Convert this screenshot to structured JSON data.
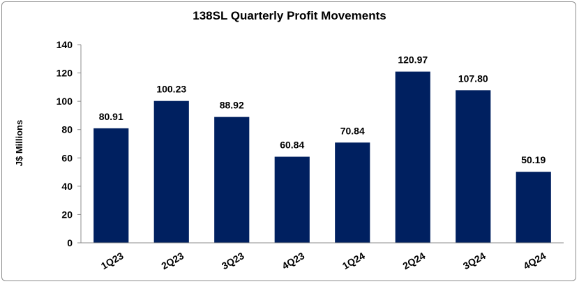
{
  "chart_data": {
    "type": "bar",
    "title": "138SL Quarterly Profit Movements",
    "ylabel": "J$ Millions",
    "xlabel": "",
    "categories": [
      "1Q23",
      "2Q23",
      "3Q23",
      "4Q23",
      "1Q24",
      "2Q24",
      "3Q24",
      "4Q24"
    ],
    "values": [
      80.91,
      100.23,
      88.92,
      60.84,
      70.84,
      120.97,
      107.8,
      50.19
    ],
    "data_labels": [
      "80.91",
      "100.23",
      "88.92",
      "60.84",
      "70.84",
      "120.97",
      "107.80",
      "50.19"
    ],
    "ylim": [
      0,
      140
    ],
    "yticks": [
      "0",
      "20",
      "40",
      "60",
      "80",
      "100",
      "120",
      "140"
    ],
    "grid": false,
    "legend": "none",
    "bar_color": "#002060"
  }
}
